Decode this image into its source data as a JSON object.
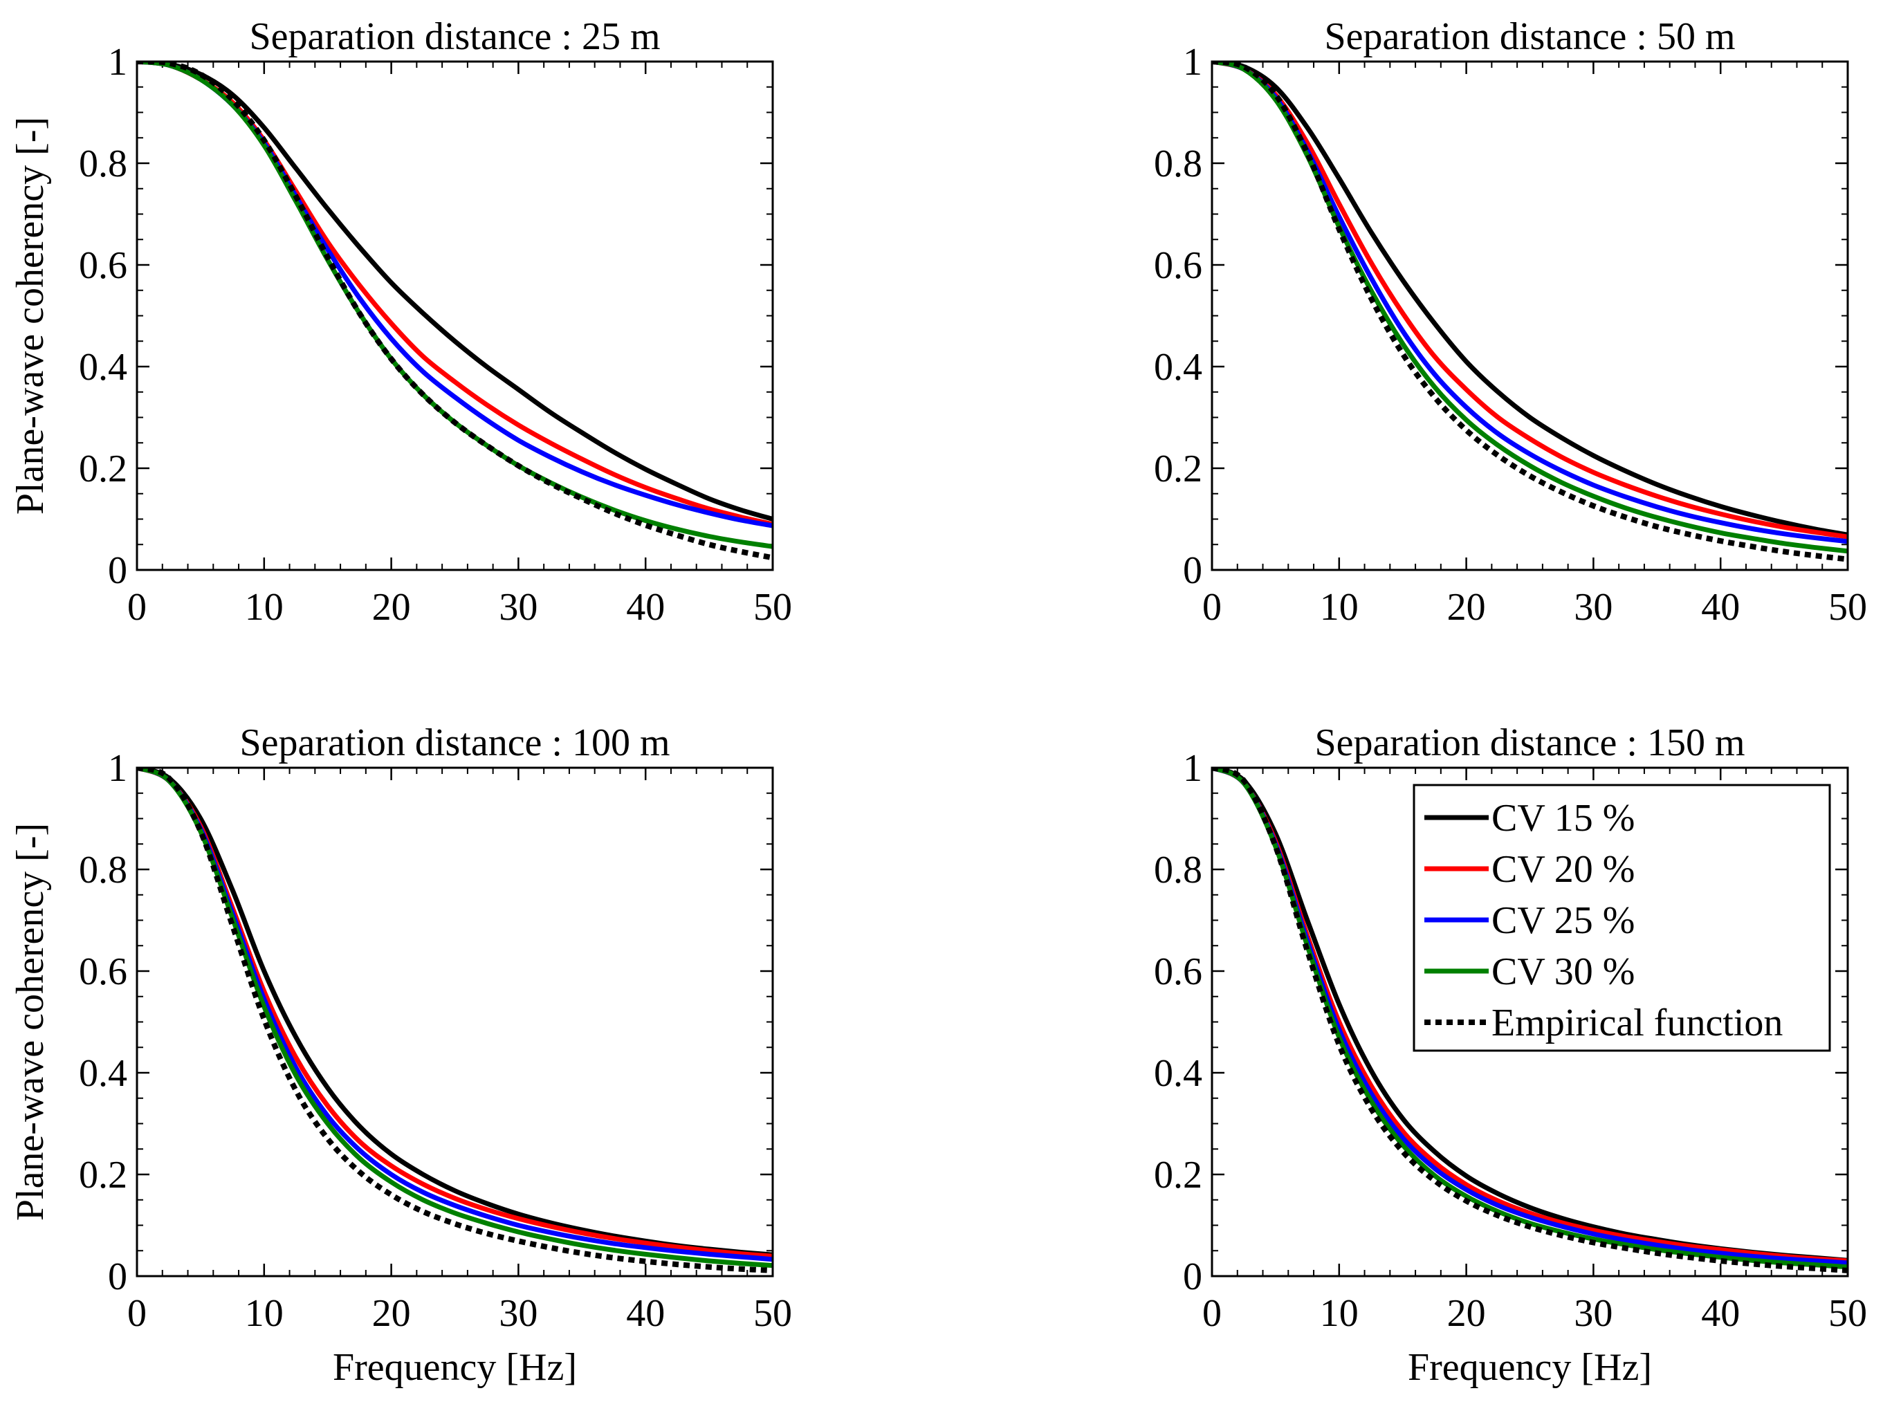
{
  "chart_data": [
    {
      "type": "line",
      "title": "Separation distance : 25 m",
      "xlabel": "",
      "ylabel": "Plane-wave coherency [-]",
      "xlim": [
        0,
        50
      ],
      "ylim": [
        0,
        1
      ],
      "xticks": [
        "0",
        "10",
        "20",
        "30",
        "40",
        "50"
      ],
      "yticks": [
        "0",
        "0.2",
        "0.4",
        "0.6",
        "0.8",
        "1"
      ],
      "x": [
        0,
        2.5,
        5,
        7.5,
        10,
        12.5,
        15,
        17.5,
        20,
        22.5,
        25,
        27.5,
        30,
        32.5,
        35,
        37.5,
        40,
        42.5,
        45,
        47.5,
        50
      ],
      "series": [
        {
          "name": "CV 15 %",
          "color": "#000000",
          "style": "solid",
          "values": [
            1.0,
            0.995,
            0.975,
            0.935,
            0.87,
            0.79,
            0.71,
            0.635,
            0.565,
            0.505,
            0.45,
            0.4,
            0.355,
            0.31,
            0.27,
            0.232,
            0.198,
            0.168,
            0.14,
            0.118,
            0.1
          ]
        },
        {
          "name": "CV 20 %",
          "color": "#ff0000",
          "style": "solid",
          "values": [
            1.0,
            0.993,
            0.965,
            0.92,
            0.845,
            0.745,
            0.645,
            0.56,
            0.485,
            0.42,
            0.37,
            0.325,
            0.285,
            0.25,
            0.218,
            0.188,
            0.162,
            0.14,
            0.12,
            0.104,
            0.09
          ]
        },
        {
          "name": "CV 25 %",
          "color": "#0000ff",
          "style": "solid",
          "values": [
            1.0,
            0.993,
            0.965,
            0.915,
            0.84,
            0.735,
            0.63,
            0.535,
            0.455,
            0.39,
            0.34,
            0.295,
            0.255,
            0.222,
            0.193,
            0.168,
            0.147,
            0.128,
            0.112,
            0.098,
            0.087
          ]
        },
        {
          "name": "CV 30 %",
          "color": "#008000",
          "style": "solid",
          "values": [
            1.0,
            0.993,
            0.965,
            0.915,
            0.835,
            0.725,
            0.61,
            0.505,
            0.415,
            0.345,
            0.29,
            0.245,
            0.205,
            0.172,
            0.143,
            0.118,
            0.097,
            0.08,
            0.066,
            0.055,
            0.046
          ]
        },
        {
          "name": "Empirical function",
          "color": "#000000",
          "style": "dotted",
          "values": [
            1.0,
            0.997,
            0.975,
            0.925,
            0.845,
            0.735,
            0.615,
            0.505,
            0.415,
            0.345,
            0.29,
            0.245,
            0.205,
            0.17,
            0.14,
            0.112,
            0.088,
            0.068,
            0.05,
            0.036,
            0.024
          ]
        }
      ]
    },
    {
      "type": "line",
      "title": "Separation distance : 50 m",
      "xlabel": "",
      "ylabel": "",
      "xlim": [
        0,
        50
      ],
      "ylim": [
        0,
        1
      ],
      "xticks": [
        "0",
        "10",
        "20",
        "30",
        "40",
        "50"
      ],
      "yticks": [
        "0",
        "0.2",
        "0.4",
        "0.6",
        "0.8",
        "1"
      ],
      "x": [
        0,
        2.5,
        5,
        7.5,
        10,
        12.5,
        15,
        17.5,
        20,
        22.5,
        25,
        27.5,
        30,
        32.5,
        35,
        37.5,
        40,
        42.5,
        45,
        47.5,
        50
      ],
      "series": [
        {
          "name": "CV 15 %",
          "color": "#000000",
          "style": "solid",
          "values": [
            1.0,
            0.99,
            0.95,
            0.87,
            0.77,
            0.665,
            0.57,
            0.485,
            0.41,
            0.35,
            0.3,
            0.26,
            0.225,
            0.195,
            0.168,
            0.145,
            0.125,
            0.108,
            0.093,
            0.08,
            0.069
          ]
        },
        {
          "name": "CV 20 %",
          "color": "#ff0000",
          "style": "solid",
          "values": [
            1.0,
            0.985,
            0.935,
            0.84,
            0.72,
            0.605,
            0.505,
            0.42,
            0.355,
            0.3,
            0.258,
            0.222,
            0.192,
            0.167,
            0.145,
            0.126,
            0.11,
            0.096,
            0.084,
            0.074,
            0.065
          ]
        },
        {
          "name": "CV 25 %",
          "color": "#0000ff",
          "style": "solid",
          "values": [
            1.0,
            0.985,
            0.93,
            0.825,
            0.695,
            0.575,
            0.47,
            0.385,
            0.32,
            0.268,
            0.228,
            0.195,
            0.167,
            0.144,
            0.124,
            0.107,
            0.093,
            0.081,
            0.071,
            0.063,
            0.056
          ]
        },
        {
          "name": "CV 30 %",
          "color": "#008000",
          "style": "solid",
          "values": [
            1.0,
            0.985,
            0.925,
            0.815,
            0.675,
            0.55,
            0.445,
            0.36,
            0.295,
            0.245,
            0.205,
            0.172,
            0.145,
            0.122,
            0.103,
            0.087,
            0.073,
            0.062,
            0.052,
            0.044,
            0.037
          ]
        },
        {
          "name": "Empirical function",
          "color": "#000000",
          "style": "dotted",
          "values": [
            1.0,
            0.99,
            0.935,
            0.82,
            0.67,
            0.535,
            0.425,
            0.34,
            0.275,
            0.225,
            0.185,
            0.153,
            0.126,
            0.104,
            0.085,
            0.07,
            0.057,
            0.046,
            0.036,
            0.028,
            0.021
          ]
        }
      ]
    },
    {
      "type": "line",
      "title": "Separation distance : 100 m",
      "xlabel": "Frequency [Hz]",
      "ylabel": "Plane-wave coherency [-]",
      "xlim": [
        0,
        50
      ],
      "ylim": [
        0,
        1
      ],
      "xticks": [
        "0",
        "10",
        "20",
        "30",
        "40",
        "50"
      ],
      "yticks": [
        "0",
        "0.2",
        "0.4",
        "0.6",
        "0.8",
        "1"
      ],
      "x": [
        0,
        2.5,
        5,
        7.5,
        10,
        12.5,
        15,
        17.5,
        20,
        22.5,
        25,
        27.5,
        30,
        32.5,
        35,
        37.5,
        40,
        42.5,
        45,
        47.5,
        50
      ],
      "series": [
        {
          "name": "CV 15 %",
          "color": "#000000",
          "style": "solid",
          "values": [
            1.0,
            0.98,
            0.9,
            0.76,
            0.6,
            0.47,
            0.37,
            0.295,
            0.24,
            0.2,
            0.168,
            0.143,
            0.122,
            0.105,
            0.091,
            0.079,
            0.069,
            0.06,
            0.053,
            0.047,
            0.042
          ]
        },
        {
          "name": "CV 20 %",
          "color": "#ff0000",
          "style": "solid",
          "values": [
            1.0,
            0.975,
            0.885,
            0.725,
            0.56,
            0.43,
            0.335,
            0.265,
            0.217,
            0.181,
            0.153,
            0.131,
            0.113,
            0.098,
            0.085,
            0.074,
            0.065,
            0.057,
            0.05,
            0.044,
            0.039
          ]
        },
        {
          "name": "CV 25 %",
          "color": "#0000ff",
          "style": "solid",
          "values": [
            1.0,
            0.975,
            0.88,
            0.715,
            0.545,
            0.41,
            0.315,
            0.248,
            0.2,
            0.165,
            0.139,
            0.118,
            0.1,
            0.086,
            0.074,
            0.064,
            0.056,
            0.049,
            0.043,
            0.038,
            0.033
          ]
        },
        {
          "name": "CV 30 %",
          "color": "#008000",
          "style": "solid",
          "values": [
            1.0,
            0.975,
            0.875,
            0.705,
            0.53,
            0.395,
            0.3,
            0.232,
            0.185,
            0.15,
            0.124,
            0.104,
            0.087,
            0.073,
            0.061,
            0.051,
            0.043,
            0.036,
            0.03,
            0.025,
            0.021
          ]
        },
        {
          "name": "Empirical function",
          "color": "#000000",
          "style": "dotted",
          "values": [
            1.0,
            0.98,
            0.875,
            0.69,
            0.505,
            0.365,
            0.27,
            0.205,
            0.16,
            0.127,
            0.103,
            0.084,
            0.069,
            0.056,
            0.045,
            0.036,
            0.029,
            0.023,
            0.018,
            0.014,
            0.011
          ]
        }
      ]
    },
    {
      "type": "line",
      "title": "Separation distance : 150 m",
      "xlabel": "Frequency [Hz]",
      "ylabel": "",
      "xlim": [
        0,
        50
      ],
      "ylim": [
        0,
        1
      ],
      "xticks": [
        "0",
        "10",
        "20",
        "30",
        "40",
        "50"
      ],
      "yticks": [
        "0",
        "0.2",
        "0.4",
        "0.6",
        "0.8",
        "1"
      ],
      "legend_position": "top-right",
      "x": [
        0,
        2.5,
        5,
        7.5,
        10,
        12.5,
        15,
        17.5,
        20,
        22.5,
        25,
        27.5,
        30,
        32.5,
        35,
        37.5,
        40,
        42.5,
        45,
        47.5,
        50
      ],
      "series": [
        {
          "name": "CV 15 %",
          "color": "#000000",
          "style": "solid",
          "values": [
            1.0,
            0.975,
            0.87,
            0.7,
            0.535,
            0.405,
            0.31,
            0.245,
            0.197,
            0.162,
            0.135,
            0.114,
            0.097,
            0.083,
            0.072,
            0.062,
            0.054,
            0.047,
            0.041,
            0.036,
            0.031
          ]
        },
        {
          "name": "CV 20 %",
          "color": "#ff0000",
          "style": "solid",
          "values": [
            1.0,
            0.97,
            0.855,
            0.67,
            0.5,
            0.375,
            0.285,
            0.224,
            0.18,
            0.148,
            0.124,
            0.105,
            0.09,
            0.078,
            0.068,
            0.059,
            0.052,
            0.045,
            0.039,
            0.034,
            0.03
          ]
        },
        {
          "name": "CV 25 %",
          "color": "#0000ff",
          "style": "solid",
          "values": [
            1.0,
            0.97,
            0.85,
            0.66,
            0.485,
            0.36,
            0.272,
            0.212,
            0.17,
            0.139,
            0.116,
            0.098,
            0.083,
            0.071,
            0.061,
            0.052,
            0.045,
            0.039,
            0.034,
            0.03,
            0.026
          ]
        },
        {
          "name": "CV 30 %",
          "color": "#008000",
          "style": "solid",
          "values": [
            1.0,
            0.97,
            0.845,
            0.65,
            0.47,
            0.345,
            0.258,
            0.198,
            0.157,
            0.127,
            0.104,
            0.087,
            0.073,
            0.062,
            0.052,
            0.044,
            0.037,
            0.031,
            0.026,
            0.022,
            0.018
          ]
        },
        {
          "name": "Empirical function",
          "color": "#000000",
          "style": "dotted",
          "values": [
            1.0,
            0.975,
            0.845,
            0.64,
            0.455,
            0.33,
            0.245,
            0.188,
            0.148,
            0.119,
            0.097,
            0.08,
            0.066,
            0.055,
            0.045,
            0.037,
            0.03,
            0.024,
            0.019,
            0.015,
            0.011
          ]
        }
      ]
    }
  ]
}
